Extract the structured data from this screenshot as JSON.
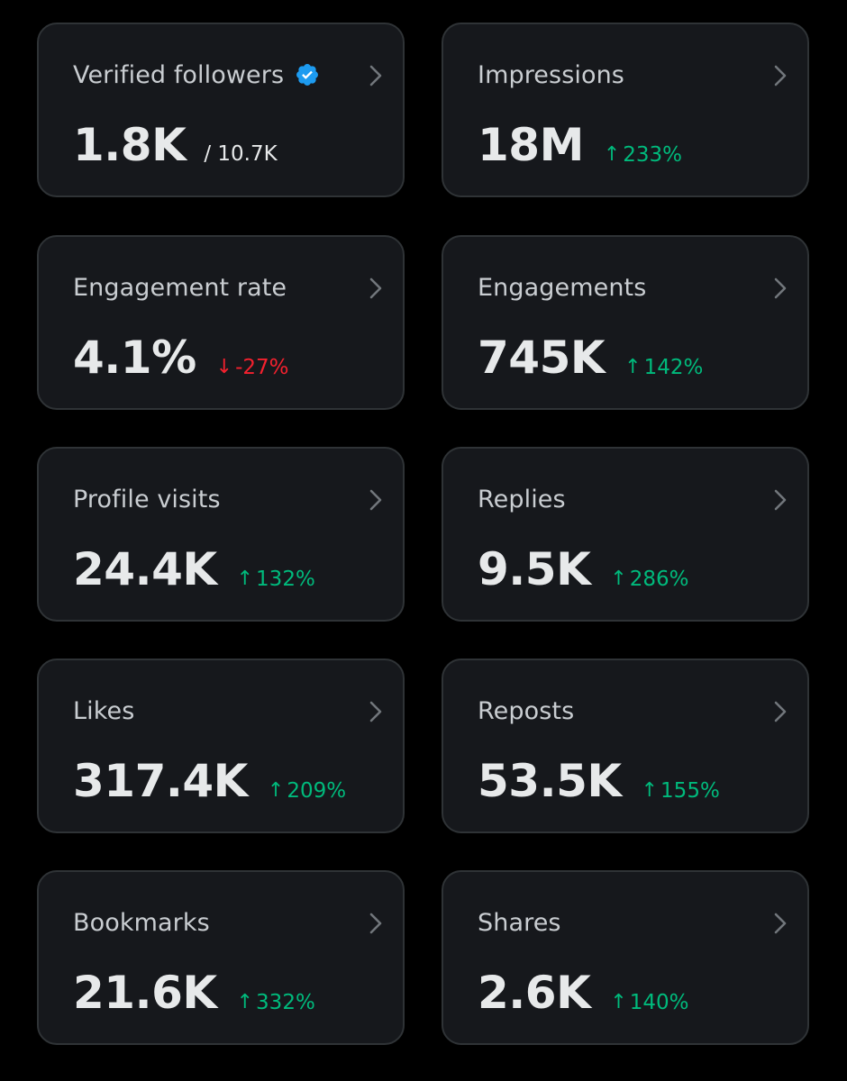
{
  "colors": {
    "background": "#000000",
    "card": "#16181c",
    "border": "#2f3336",
    "positive": "#00ba7c",
    "negative": "#f4212e",
    "verified": "#1d9bf0"
  },
  "metrics": [
    {
      "label": "Verified followers",
      "value": "1.8K",
      "sub": "/ 10.7K",
      "icon": "verified-badge-icon"
    },
    {
      "label": "Impressions",
      "value": "18M",
      "change": "233%",
      "direction": "up",
      "arrow": "↑"
    },
    {
      "label": "Engagement rate",
      "value": "4.1%",
      "change": "-27%",
      "direction": "down",
      "arrow": "↓"
    },
    {
      "label": "Engagements",
      "value": "745K",
      "change": "142%",
      "direction": "up",
      "arrow": "↑"
    },
    {
      "label": "Profile visits",
      "value": "24.4K",
      "change": "132%",
      "direction": "up",
      "arrow": "↑"
    },
    {
      "label": "Replies",
      "value": "9.5K",
      "change": "286%",
      "direction": "up",
      "arrow": "↑"
    },
    {
      "label": "Likes",
      "value": "317.4K",
      "change": "209%",
      "direction": "up",
      "arrow": "↑"
    },
    {
      "label": "Reposts",
      "value": "53.5K",
      "change": "155%",
      "direction": "up",
      "arrow": "↑"
    },
    {
      "label": "Bookmarks",
      "value": "21.6K",
      "change": "332%",
      "direction": "up",
      "arrow": "↑"
    },
    {
      "label": "Shares",
      "value": "2.6K",
      "change": "140%",
      "direction": "up",
      "arrow": "↑"
    }
  ]
}
